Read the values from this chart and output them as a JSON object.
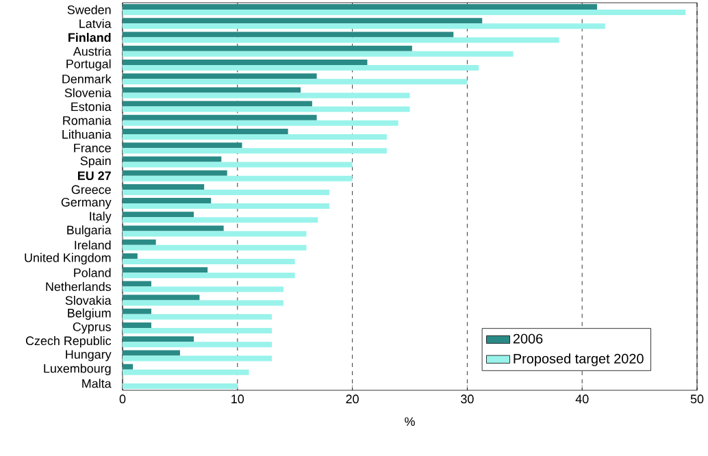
{
  "chart_data": {
    "type": "bar",
    "orientation": "horizontal",
    "xlabel": "%",
    "categories": [
      "Sweden",
      "Latvia",
      "**Finland**",
      "Austria",
      "Portugal",
      "Denmark",
      "Slovenia",
      "Estonia",
      "Romania",
      "Lithuania",
      "France",
      "Spain",
      "**EU 27**",
      "Greece",
      "Germany",
      "Italy",
      "Bulgaria",
      "Ireland",
      "United Kingdom",
      "Poland",
      "Netherlands",
      "Slovakia",
      "Belgium",
      "Cyprus",
      "Czech Republic",
      "Hungary",
      "Luxembourg",
      "Malta"
    ],
    "series": [
      {
        "name": "2006",
        "color": "#2a8a86",
        "values": [
          41.3,
          31.3,
          28.8,
          25.2,
          21.3,
          16.9,
          15.5,
          16.5,
          16.9,
          14.4,
          10.4,
          8.6,
          9.1,
          7.1,
          7.7,
          6.2,
          8.8,
          2.9,
          1.3,
          7.4,
          2.5,
          6.7,
          2.5,
          2.5,
          6.2,
          5.0,
          0.9,
          0
        ]
      },
      {
        "name": "Proposed target 2020",
        "color": "#99f3eb",
        "values": [
          49,
          42,
          38,
          34,
          31,
          30,
          25,
          25,
          24,
          23,
          23,
          20,
          20,
          18,
          18,
          17,
          16,
          16,
          15,
          15,
          14,
          14,
          13,
          13,
          13,
          13,
          11,
          10
        ]
      }
    ],
    "xlim": [
      0,
      50
    ],
    "xticks": [
      0,
      10,
      20,
      30,
      40,
      50
    ],
    "grid": "x",
    "legend": "bottom right"
  }
}
